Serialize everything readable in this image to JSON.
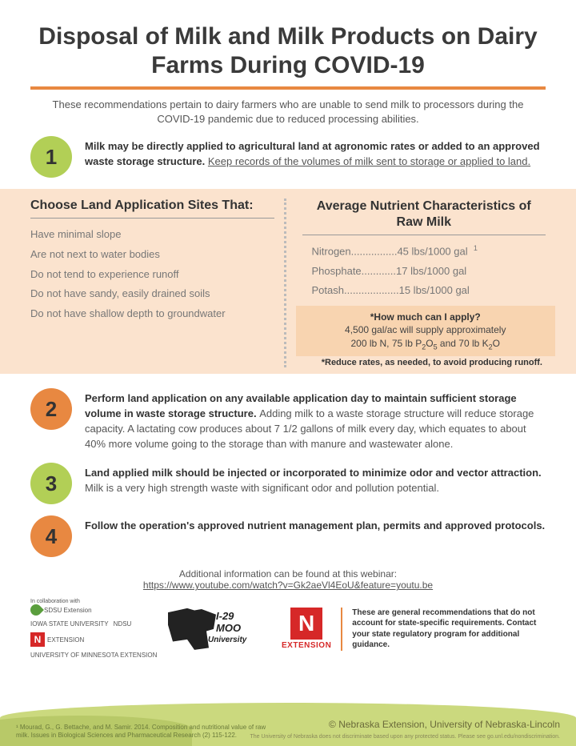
{
  "title": "Disposal of Milk and Milk Products on Dairy Farms During COVID-19",
  "intro": "These recommendations pertain to dairy farmers who are unable to send milk to processors during the COVID-19 pandemic due to reduced processing abilities.",
  "steps": [
    {
      "num": "1",
      "color": "green",
      "bold": "Milk may be directly applied to agricultural land at agronomic rates or added to an approved waste storage structure. ",
      "underline": "Keep records of the volumes of milk sent to storage or applied to land."
    },
    {
      "num": "2",
      "color": "orange",
      "bold": "Perform land application on any available application day to maintain sufficient storage volume in waste storage structure. ",
      "rest": "Adding milk to a waste storage structure will reduce storage capacity. A lactating cow produces about 7 1/2 gallons of milk every day, which equates to about 40% more volume going to the storage than with manure and wastewater alone."
    },
    {
      "num": "3",
      "color": "green",
      "bold": "Land applied milk should be injected or incorporated to minimize odor and vector attraction. ",
      "rest": "Milk is a very high strength waste with significant odor and pollution potential."
    },
    {
      "num": "4",
      "color": "orange",
      "bold": "Follow the operation's approved nutrient management plan, permits and approved protocols.",
      "rest": ""
    }
  ],
  "panel": {
    "left_heading": "Choose Land Application Sites That:",
    "sites": [
      "Have minimal slope",
      "Are not next to water bodies",
      "Do not tend to experience runoff",
      "Do not have sandy, easily drained soils",
      "Do not have shallow depth to groundwater"
    ],
    "right_heading": "Average Nutrient Characteristics of Raw Milk",
    "nutrients": [
      {
        "label": "Nitrogen",
        "dots": "................",
        "value": "45 lbs/1000 gal",
        "note": "1"
      },
      {
        "label": "Phosphate",
        "dots": "............",
        "value": "17 lbs/1000 gal",
        "note": ""
      },
      {
        "label": "Potash",
        "dots": "...................",
        "value": "15 lbs/1000 gal",
        "note": ""
      }
    ],
    "apply": {
      "q": "*How much can I apply?",
      "line1": "4,500 gal/ac will supply approximately",
      "line2_a": "200 lb N, 75 lb P",
      "line2_b": "O",
      "line2_c": " and 70 lb K",
      "line2_d": "O",
      "sub1": "2",
      "sub2": "5",
      "sub3": "2"
    },
    "apply_note": "*Reduce rates, as needed, to avoid producing runoff."
  },
  "webinar": {
    "text": "Additional information can be found at this webinar:",
    "link": "https://www.youtube.com/watch?v=Gk2aeVl4EoU&feature=youtu.be"
  },
  "footer": {
    "collab": "In collaboration with",
    "logos": {
      "sdsu": "SDSU Extension",
      "iowa": "IOWA STATE UNIVERSITY",
      "ndsu": "NDSU",
      "n": "N",
      "umn": "UNIVERSITY OF MINNESOTA EXTENSION",
      "ext_small": "EXTENSION"
    },
    "i29": {
      "top": "I-29",
      "mid": "MOO",
      "bot": "University"
    },
    "n_ext": {
      "n": "N",
      "label": "EXTENSION"
    },
    "note": "These are general recommendations that do not account for state-specific requirements. Contact your state regulatory program for additional guidance."
  },
  "citation": "¹ Mourad, G., G. Bettache, and M. Samir. 2014. Composition and nutritional value of raw milk. Issues in Biological Sciences and Pharmaceutical Research (2) 115-122.",
  "copyright": "© Nebraska Extension, University of Nebraska-Lincoln",
  "nondisc": "The University of Nebraska does not discriminate based upon any protected status. Please see go.unl.edu/nondiscrimination.",
  "colors": {
    "green": "#b2cf56",
    "orange": "#e88841",
    "panel_bg": "#fbe3ce",
    "panel_box": "#f8d4b0",
    "red": "#d62828",
    "hill": "#cbd97e"
  }
}
